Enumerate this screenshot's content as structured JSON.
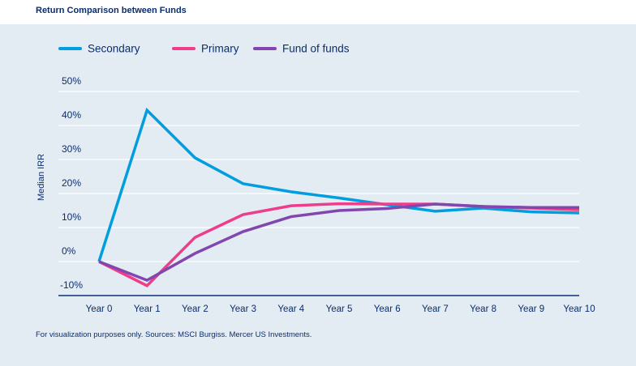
{
  "title": "Return Comparison between Funds",
  "footnote": "For visualization purposes only. Sources: MSCI Burgiss. Mercer US Investments.",
  "chart_data": {
    "type": "line",
    "title": "Return Comparison between Funds",
    "xlabel": "",
    "ylabel": "Median IRR",
    "categories": [
      "Year 0",
      "Year 1",
      "Year 2",
      "Year 3",
      "Year 4",
      "Year 5",
      "Year 6",
      "Year 7",
      "Year 8",
      "Year 9",
      "Year 10"
    ],
    "yticks": [
      -10,
      0,
      10,
      20,
      30,
      40,
      50
    ],
    "ytick_labels": [
      "-10%",
      "0%",
      "10%",
      "20%",
      "30%",
      "40%",
      "50%"
    ],
    "ylim": [
      -10,
      50
    ],
    "grid": true,
    "legend_position": "top-left",
    "series": [
      {
        "name": "Secondary",
        "color": "#009ede",
        "values": [
          0,
          44.5,
          30.5,
          22.9,
          20.5,
          18.7,
          16.7,
          14.8,
          15.7,
          14.6,
          14.3
        ]
      },
      {
        "name": "Primary",
        "color": "#ee3d8b",
        "values": [
          0,
          -7.1,
          7.1,
          13.8,
          16.4,
          17.0,
          16.9,
          16.9,
          16.2,
          15.7,
          15.2
        ]
      },
      {
        "name": "Fund of funds",
        "color": "#8246af",
        "values": [
          0,
          -5.5,
          2.4,
          8.8,
          13.2,
          15.0,
          15.6,
          16.9,
          16.2,
          15.9,
          15.9
        ]
      }
    ]
  }
}
